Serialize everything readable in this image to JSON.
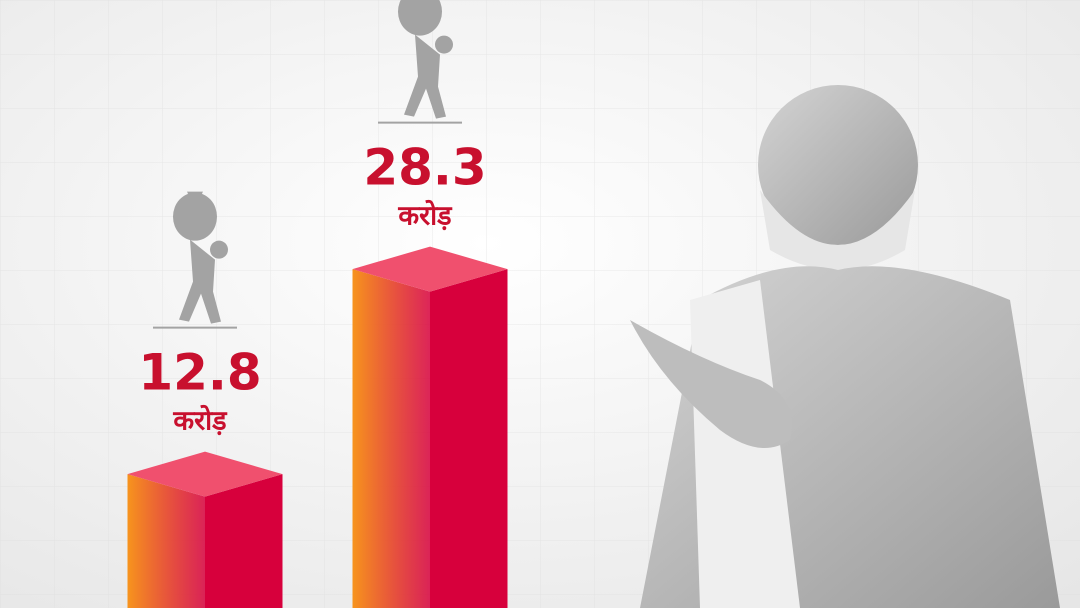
{
  "chart_data": {
    "type": "bar3d",
    "unit": "करोड़",
    "values": [
      12.8,
      28.3
    ],
    "front_color": "#f7941d",
    "side_color": "#d7003c",
    "top_color": "#f0506e"
  }
}
